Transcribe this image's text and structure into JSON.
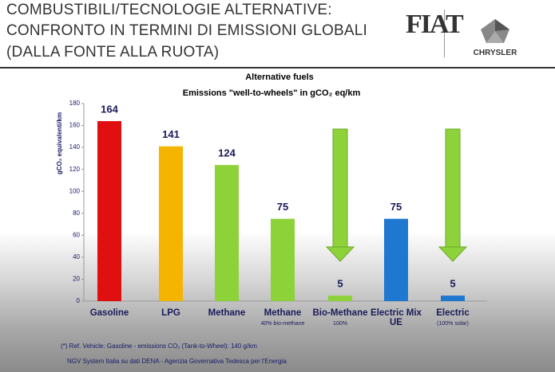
{
  "header": {
    "lines": [
      "COMBUSTIBILI/TECNOLOGIE ALTERNATIVE:",
      "CONFRONTO IN TERMINI DI EMISSIONI GLOBALI",
      "(DALLA FONTE ALLA RUOTA)"
    ],
    "logo_left": "FIAT",
    "logo_right": "CHRYSLER"
  },
  "chart_data": {
    "type": "bar",
    "title": "Alternative fuels",
    "subtitle": "Emissions  \"well-to-wheels\" in gCO₂ eq/km",
    "y_label": "gCO₂ equivalenti/km",
    "categories": [
      "Gasoline",
      "LPG",
      "Methane",
      "Methane",
      "Bio-Methane",
      "Electric Mix UE",
      "Electric"
    ],
    "category_notes": [
      null,
      null,
      null,
      "40% bio-methane",
      "100%",
      null,
      "(100% solar)"
    ],
    "values": [
      164,
      141,
      124,
      75,
      5,
      75,
      5
    ],
    "colors": [
      "#e01010",
      "#f5b400",
      "#8ed23a",
      "#8ed23a",
      "#8ed23a",
      "#1f78d0",
      "#1f78d0"
    ],
    "ylim": [
      0,
      180
    ],
    "yticks": [
      0,
      20,
      40,
      60,
      80,
      100,
      120,
      140,
      160,
      180
    ],
    "grid": false
  },
  "footnotes": [
    "(*) Ref. Vehicle: Gasoline - emissions CO₂ (Tank-to-Wheel): 140 g/km",
    "NGV System Italia su dati DENA - Agenzia Governativa Tedesca per l'Energia"
  ]
}
